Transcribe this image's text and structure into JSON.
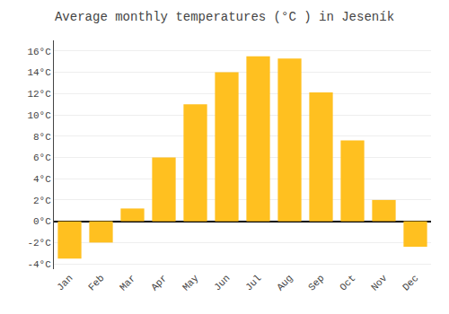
{
  "chart_data": {
    "type": "bar",
    "title": "Average monthly temperatures (°C ) in Jeseník",
    "categories": [
      "Jan",
      "Feb",
      "Mar",
      "Apr",
      "May",
      "Jun",
      "Jul",
      "Aug",
      "Sep",
      "Oct",
      "Nov",
      "Dec"
    ],
    "values": [
      -3.5,
      -2.0,
      1.2,
      6.0,
      11.0,
      14.0,
      15.5,
      15.3,
      12.1,
      7.6,
      2.0,
      -2.4
    ],
    "color": "#FFC020",
    "ylim": [
      -4.5,
      17.0
    ],
    "yticks": [
      {
        "value": -4,
        "label": "-4°C"
      },
      {
        "value": -2,
        "label": "-2°C"
      },
      {
        "value": 0,
        "label": "0°C"
      },
      {
        "value": 2,
        "label": "2°C"
      },
      {
        "value": 4,
        "label": "4°C"
      },
      {
        "value": 6,
        "label": "6°C"
      },
      {
        "value": 8,
        "label": "8°C"
      },
      {
        "value": 10,
        "label": "10°C"
      },
      {
        "value": 12,
        "label": "12°C"
      },
      {
        "value": 14,
        "label": "14°C"
      },
      {
        "value": 16,
        "label": "16°C"
      }
    ],
    "grid": true
  }
}
